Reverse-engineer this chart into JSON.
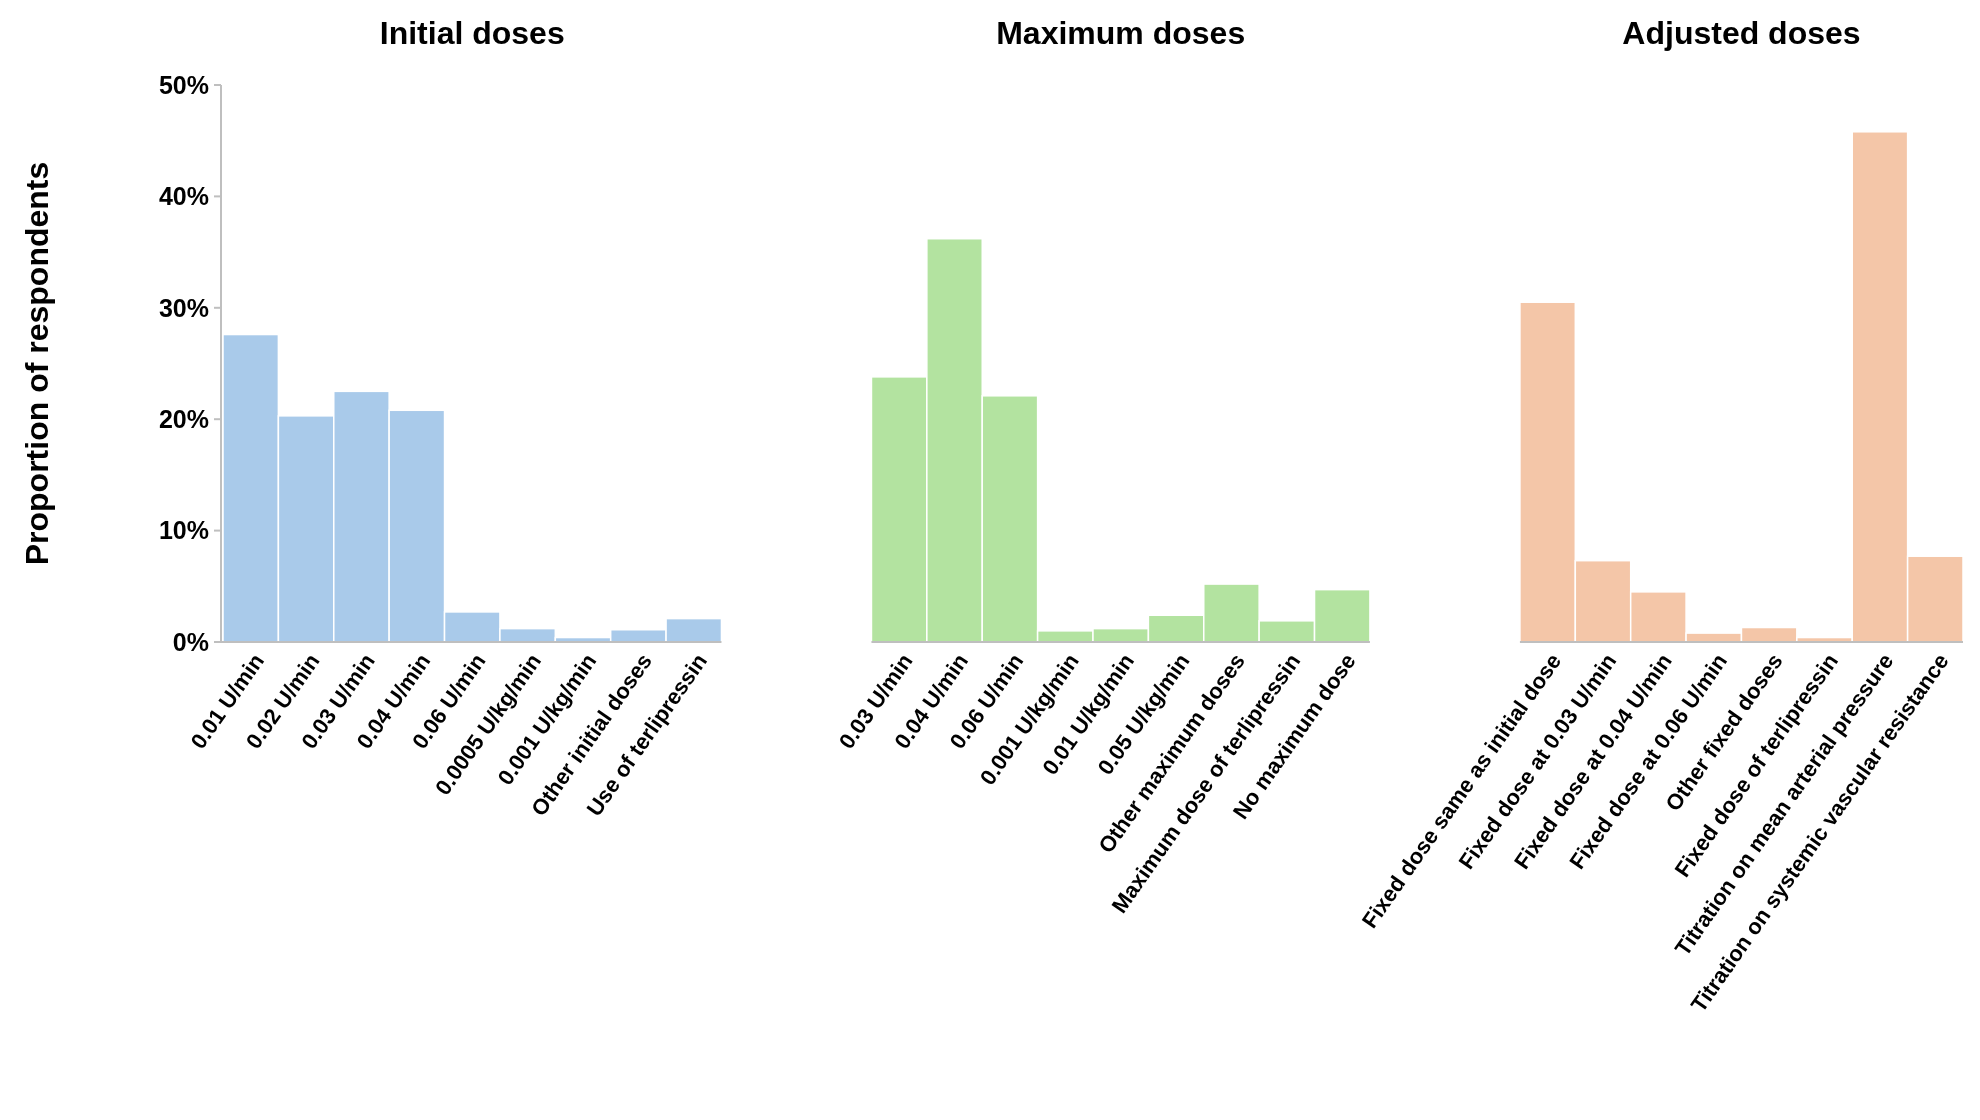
{
  "chart_data": [
    {
      "type": "bar",
      "title": "Initial doses",
      "ylabel": "Proportion of respondents",
      "categories": [
        "0.01 U/min",
        "0.02 U/min",
        "0.03 U/min",
        "0.04 U/min",
        "0.06 U/min",
        "0.0005 U/kg/min",
        "0.001 U/kg/min",
        "Other initial doses",
        "Use of terlipressin"
      ],
      "values": [
        27.6,
        20.3,
        22.5,
        20.8,
        2.7,
        1.2,
        0.4,
        1.1,
        2.1
      ],
      "color": "#a9caea",
      "ylim": [
        0,
        50
      ],
      "yticks": [
        {
          "value": 0,
          "label": "0%"
        },
        {
          "value": 10,
          "label": "10%"
        },
        {
          "value": 20,
          "label": "20%"
        },
        {
          "value": 30,
          "label": "30%"
        },
        {
          "value": 40,
          "label": "40%"
        },
        {
          "value": 50,
          "label": "50%"
        }
      ]
    },
    {
      "type": "bar",
      "title": "Maximum doses",
      "categories": [
        "0.03 U/min",
        "0.04 U/min",
        "0.06 U/min",
        "0.001 U/kg/min",
        "0.01 U/kg/min",
        "0.05 U/kg/min",
        "Other maximum doses",
        "Maximum dose of terlipressin",
        "No maximum dose"
      ],
      "values": [
        23.8,
        36.2,
        22.1,
        1.0,
        1.2,
        2.4,
        5.2,
        1.9,
        4.7
      ],
      "color": "#b3e3a0",
      "ylim": [
        0,
        50
      ],
      "tick_labels": "x"
    },
    {
      "type": "bar",
      "title": "Adjusted doses",
      "categories": [
        "Fixed dose same as initial dose",
        "Fixed dose at 0.03 U/min",
        "Fixed dose at 0.04 U/min",
        "Fixed dose at 0.06 U/min",
        "Other fixed doses",
        "Fixed dose of terlipressin",
        "Titration on mean arterial pressure",
        "Titration on systemic vascular resistance"
      ],
      "values": [
        30.5,
        7.3,
        4.5,
        0.8,
        1.3,
        0.4,
        45.8,
        7.7
      ],
      "color": "#f4c6a8",
      "ylim": [
        0,
        50
      ],
      "tick_labels": "x"
    }
  ]
}
